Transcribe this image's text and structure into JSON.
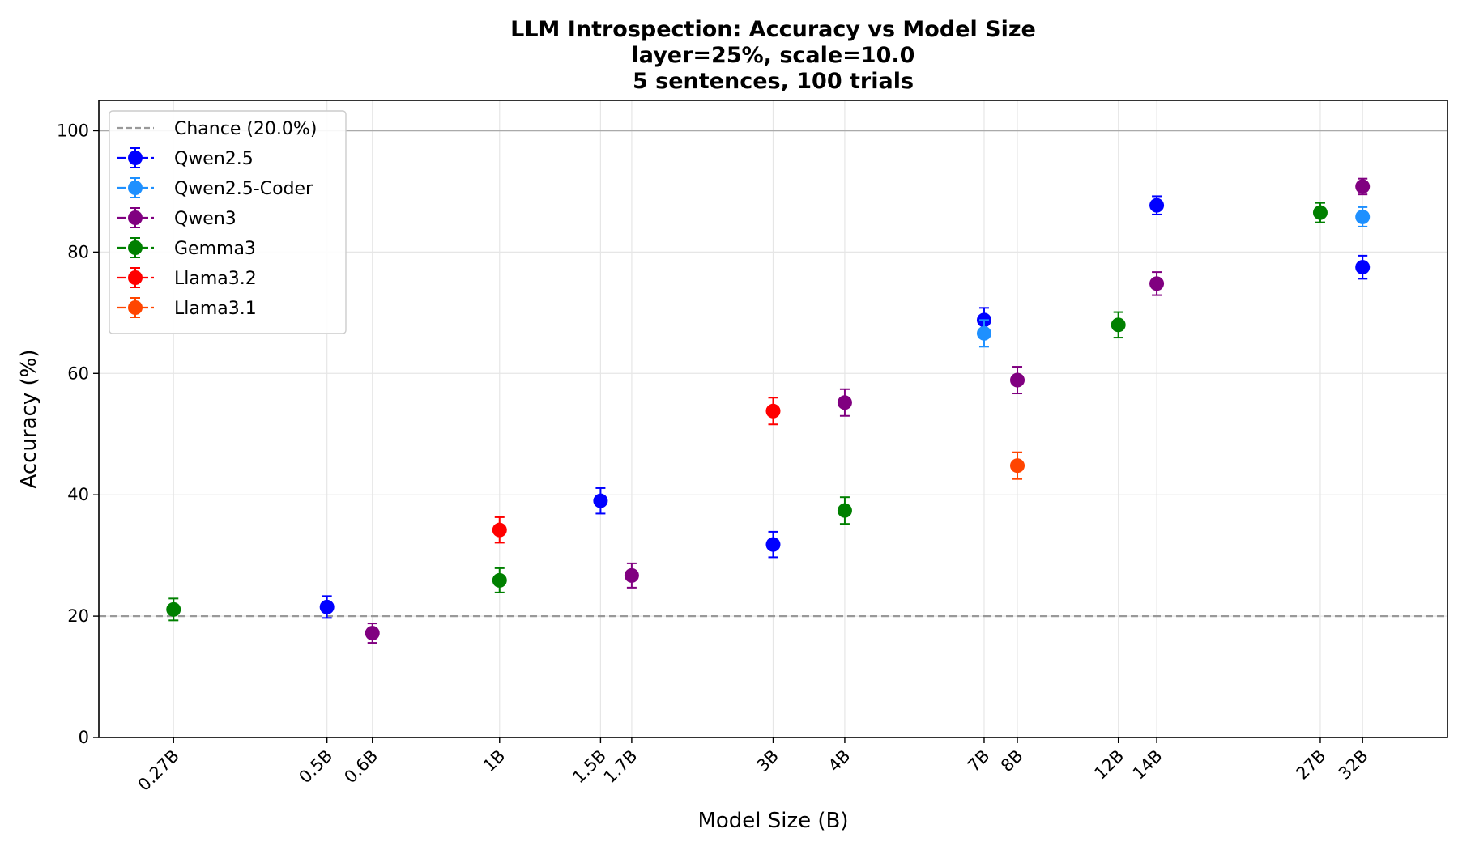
{
  "chart_data": {
    "type": "scatter",
    "title_lines": [
      "LLM Introspection: Accuracy vs Model Size",
      "layer=25%, scale=10.0",
      "5 sentences, 100 trials"
    ],
    "xlabel": "Model Size (B)",
    "ylabel": "Accuracy (%)",
    "x_scale": "log",
    "xlim": [
      0.2,
      45
    ],
    "ylim": [
      0,
      105
    ],
    "y_ticks": [
      0,
      20,
      40,
      60,
      80,
      100
    ],
    "x_ticks": [
      {
        "value": 0.27,
        "label": "0.27B"
      },
      {
        "value": 0.5,
        "label": "0.5B"
      },
      {
        "value": 0.6,
        "label": "0.6B"
      },
      {
        "value": 1,
        "label": "1B"
      },
      {
        "value": 1.5,
        "label": "1.5B"
      },
      {
        "value": 1.7,
        "label": "1.7B"
      },
      {
        "value": 3,
        "label": "3B"
      },
      {
        "value": 4,
        "label": "4B"
      },
      {
        "value": 7,
        "label": "7B"
      },
      {
        "value": 8,
        "label": "8B"
      },
      {
        "value": 12,
        "label": "12B"
      },
      {
        "value": 14,
        "label": "14B"
      },
      {
        "value": 27,
        "label": "27B"
      },
      {
        "value": 32,
        "label": "32B"
      }
    ],
    "grid": true,
    "legend_position": "top-left",
    "chance_line": {
      "value": 20,
      "label": "Chance (20.0%)",
      "color": "#999999"
    },
    "reference_line": {
      "value": 100,
      "color": "#aaaaaa"
    },
    "series": [
      {
        "name": "Qwen2.5",
        "color": "#0000ff",
        "points": [
          {
            "x": 0.5,
            "y": 21.5,
            "err": 1.8
          },
          {
            "x": 1.5,
            "y": 39.0,
            "err": 2.1
          },
          {
            "x": 3,
            "y": 31.8,
            "err": 2.1
          },
          {
            "x": 7,
            "y": 68.8,
            "err": 2.0
          },
          {
            "x": 14,
            "y": 87.7,
            "err": 1.5
          },
          {
            "x": 32,
            "y": 77.5,
            "err": 1.9
          }
        ]
      },
      {
        "name": "Qwen2.5-Coder",
        "color": "#1e90ff",
        "points": [
          {
            "x": 7,
            "y": 66.6,
            "err": 2.2
          },
          {
            "x": 32,
            "y": 85.8,
            "err": 1.6
          }
        ]
      },
      {
        "name": "Qwen3",
        "color": "#800080",
        "points": [
          {
            "x": 0.6,
            "y": 17.2,
            "err": 1.6
          },
          {
            "x": 1.7,
            "y": 26.7,
            "err": 2.0
          },
          {
            "x": 4,
            "y": 55.2,
            "err": 2.2
          },
          {
            "x": 8,
            "y": 58.9,
            "err": 2.2
          },
          {
            "x": 14,
            "y": 74.8,
            "err": 1.9
          },
          {
            "x": 32,
            "y": 90.8,
            "err": 1.3
          }
        ]
      },
      {
        "name": "Gemma3",
        "color": "#008000",
        "points": [
          {
            "x": 0.27,
            "y": 21.1,
            "err": 1.8
          },
          {
            "x": 1,
            "y": 25.9,
            "err": 2.0
          },
          {
            "x": 4,
            "y": 37.4,
            "err": 2.2
          },
          {
            "x": 12,
            "y": 68.0,
            "err": 2.1
          },
          {
            "x": 27,
            "y": 86.5,
            "err": 1.6
          }
        ]
      },
      {
        "name": "Llama3.2",
        "color": "#ff0000",
        "points": [
          {
            "x": 1,
            "y": 34.2,
            "err": 2.1
          },
          {
            "x": 3,
            "y": 53.8,
            "err": 2.2
          }
        ]
      },
      {
        "name": "Llama3.1",
        "color": "#ff4500",
        "points": [
          {
            "x": 8,
            "y": 44.8,
            "err": 2.2
          }
        ]
      }
    ]
  }
}
